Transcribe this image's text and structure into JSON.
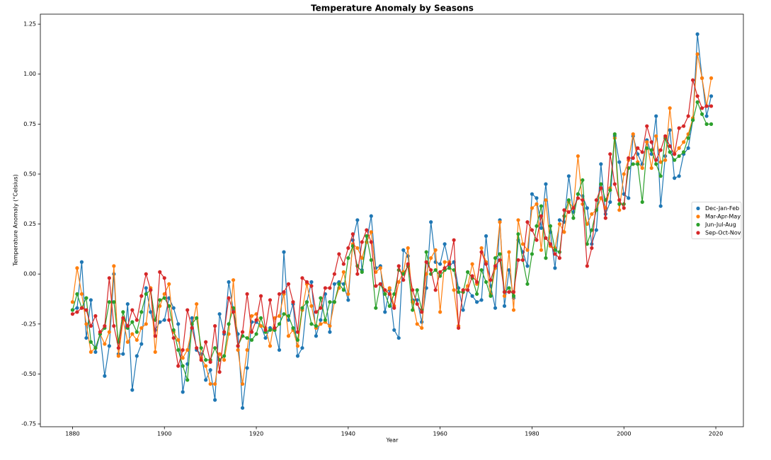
{
  "chart_data": {
    "type": "line",
    "title": "Temperature Anomaly by Seasons",
    "xlabel": "Year",
    "ylabel": "Temperature Anomaly (°Celsius)",
    "x": [
      1880,
      1881,
      1882,
      1883,
      1884,
      1885,
      1886,
      1887,
      1888,
      1889,
      1890,
      1891,
      1892,
      1893,
      1894,
      1895,
      1896,
      1897,
      1898,
      1899,
      1900,
      1901,
      1902,
      1903,
      1904,
      1905,
      1906,
      1907,
      1908,
      1909,
      1910,
      1911,
      1912,
      1913,
      1914,
      1915,
      1916,
      1917,
      1918,
      1919,
      1920,
      1921,
      1922,
      1923,
      1924,
      1925,
      1926,
      1927,
      1928,
      1929,
      1930,
      1931,
      1932,
      1933,
      1934,
      1935,
      1936,
      1937,
      1938,
      1939,
      1940,
      1941,
      1942,
      1943,
      1944,
      1945,
      1946,
      1947,
      1948,
      1949,
      1950,
      1951,
      1952,
      1953,
      1954,
      1955,
      1956,
      1957,
      1958,
      1959,
      1960,
      1961,
      1962,
      1963,
      1964,
      1965,
      1966,
      1967,
      1968,
      1969,
      1970,
      1971,
      1972,
      1973,
      1974,
      1975,
      1976,
      1977,
      1978,
      1979,
      1980,
      1981,
      1982,
      1983,
      1984,
      1985,
      1986,
      1987,
      1988,
      1989,
      1990,
      1991,
      1992,
      1993,
      1994,
      1995,
      1996,
      1997,
      1998,
      1999,
      2000,
      2001,
      2002,
      2003,
      2004,
      2005,
      2006,
      2007,
      2008,
      2009,
      2010,
      2011,
      2012,
      2013,
      2014,
      2015,
      2016,
      2017,
      2018,
      2019
    ],
    "series": [
      {
        "name": "Dec-Jan-Feb",
        "color": "#1f77b4",
        "values": [
          -0.18,
          -0.17,
          0.06,
          -0.32,
          -0.13,
          -0.39,
          -0.3,
          -0.51,
          -0.36,
          0.0,
          -0.4,
          -0.4,
          -0.15,
          -0.58,
          -0.41,
          -0.35,
          -0.07,
          -0.19,
          -0.28,
          -0.24,
          -0.23,
          -0.12,
          -0.17,
          -0.25,
          -0.59,
          -0.45,
          -0.22,
          -0.38,
          -0.4,
          -0.53,
          -0.48,
          -0.63,
          -0.2,
          -0.3,
          -0.04,
          -0.18,
          -0.3,
          -0.67,
          -0.47,
          -0.24,
          -0.24,
          -0.26,
          -0.32,
          -0.27,
          -0.28,
          -0.38,
          0.11,
          -0.23,
          -0.15,
          -0.41,
          -0.37,
          -0.14,
          -0.04,
          -0.31,
          -0.23,
          -0.1,
          -0.29,
          -0.05,
          -0.04,
          -0.05,
          -0.13,
          0.17,
          0.27,
          0.02,
          0.16,
          0.29,
          0.03,
          0.04,
          -0.19,
          -0.08,
          -0.28,
          -0.32,
          0.12,
          0.09,
          -0.13,
          -0.13,
          -0.24,
          -0.07,
          0.26,
          0.06,
          0.05,
          0.15,
          0.04,
          0.06,
          -0.07,
          -0.18,
          -0.08,
          -0.11,
          -0.14,
          -0.13,
          0.19,
          -0.06,
          -0.17,
          0.27,
          -0.16,
          0.02,
          -0.12,
          0.17,
          0.11,
          0.04,
          0.4,
          0.38,
          0.23,
          0.45,
          0.21,
          0.03,
          0.27,
          0.26,
          0.49,
          0.31,
          0.4,
          0.39,
          0.33,
          0.15,
          0.22,
          0.55,
          0.3,
          0.36,
          0.69,
          0.56,
          0.4,
          0.38,
          0.69,
          0.6,
          0.55,
          0.67,
          0.6,
          0.79,
          0.34,
          0.59,
          0.72,
          0.48,
          0.49,
          0.6,
          0.63,
          0.77,
          1.2,
          0.98,
          0.79,
          0.89
        ]
      },
      {
        "name": "Mar-Apr-May",
        "color": "#ff7f0e",
        "values": [
          -0.14,
          0.03,
          -0.1,
          -0.25,
          -0.39,
          -0.37,
          -0.3,
          -0.35,
          -0.29,
          0.04,
          -0.41,
          -0.23,
          -0.34,
          -0.3,
          -0.33,
          -0.27,
          -0.25,
          -0.07,
          -0.39,
          -0.16,
          -0.1,
          -0.05,
          -0.29,
          -0.33,
          -0.42,
          -0.38,
          -0.27,
          -0.15,
          -0.42,
          -0.46,
          -0.55,
          -0.55,
          -0.4,
          -0.43,
          -0.3,
          -0.03,
          -0.38,
          -0.55,
          -0.38,
          -0.21,
          -0.2,
          -0.26,
          -0.27,
          -0.36,
          -0.22,
          -0.21,
          -0.1,
          -0.31,
          -0.28,
          -0.36,
          -0.18,
          -0.05,
          -0.16,
          -0.27,
          -0.25,
          -0.24,
          -0.26,
          -0.14,
          -0.07,
          0.01,
          -0.1,
          0.15,
          0.13,
          0.08,
          0.16,
          0.21,
          0.01,
          0.03,
          -0.1,
          -0.07,
          -0.16,
          -0.04,
          0.01,
          0.13,
          -0.14,
          -0.25,
          -0.27,
          0.0,
          0.08,
          0.12,
          -0.19,
          0.06,
          0.06,
          -0.08,
          -0.26,
          -0.09,
          -0.06,
          0.05,
          -0.05,
          0.13,
          0.06,
          -0.1,
          0.03,
          0.26,
          -0.11,
          0.11,
          -0.18,
          0.27,
          0.15,
          0.12,
          0.33,
          0.35,
          0.12,
          0.37,
          0.14,
          0.13,
          0.25,
          0.21,
          0.36,
          0.33,
          0.59,
          0.35,
          0.25,
          0.3,
          0.32,
          0.38,
          0.33,
          0.43,
          0.68,
          0.32,
          0.5,
          0.57,
          0.7,
          0.56,
          0.53,
          0.66,
          0.53,
          0.69,
          0.56,
          0.57,
          0.83,
          0.6,
          0.63,
          0.66,
          0.7,
          0.78,
          1.1,
          0.98,
          0.84,
          0.98
        ]
      },
      {
        "name": "Jun-Jul-Aug",
        "color": "#2ca02c",
        "values": [
          -0.18,
          -0.1,
          -0.17,
          -0.12,
          -0.34,
          -0.37,
          -0.3,
          -0.27,
          -0.14,
          -0.14,
          -0.34,
          -0.19,
          -0.27,
          -0.24,
          -0.29,
          -0.19,
          -0.1,
          -0.08,
          -0.23,
          -0.13,
          -0.12,
          -0.16,
          -0.28,
          -0.38,
          -0.46,
          -0.53,
          -0.25,
          -0.22,
          -0.37,
          -0.43,
          -0.43,
          -0.37,
          -0.43,
          -0.41,
          -0.25,
          -0.17,
          -0.36,
          -0.31,
          -0.32,
          -0.33,
          -0.3,
          -0.22,
          -0.29,
          -0.28,
          -0.28,
          -0.25,
          -0.2,
          -0.21,
          -0.27,
          -0.33,
          -0.17,
          -0.14,
          -0.25,
          -0.26,
          -0.12,
          -0.23,
          -0.14,
          -0.14,
          -0.05,
          -0.08,
          0.08,
          0.14,
          0.04,
          0.01,
          0.19,
          0.07,
          -0.17,
          -0.05,
          -0.1,
          -0.16,
          -0.1,
          0.02,
          0.0,
          0.04,
          -0.18,
          -0.08,
          -0.18,
          0.11,
          0.0,
          0.02,
          -0.01,
          0.02,
          0.03,
          0.02,
          -0.09,
          -0.09,
          0.01,
          -0.02,
          -0.1,
          0.02,
          -0.04,
          -0.11,
          0.08,
          0.1,
          -0.09,
          -0.07,
          -0.11,
          0.2,
          0.07,
          -0.05,
          0.1,
          0.24,
          0.34,
          0.08,
          0.24,
          0.12,
          0.11,
          0.29,
          0.37,
          0.28,
          0.4,
          0.47,
          0.15,
          0.22,
          0.32,
          0.45,
          0.37,
          0.42,
          0.7,
          0.35,
          0.35,
          0.53,
          0.55,
          0.55,
          0.36,
          0.63,
          0.62,
          0.55,
          0.49,
          0.68,
          0.61,
          0.57,
          0.59,
          0.61,
          0.68,
          0.77,
          0.86,
          0.8,
          0.75,
          0.75
        ]
      },
      {
        "name": "Sep-Oct-Nov",
        "color": "#d62728",
        "values": [
          -0.2,
          -0.19,
          -0.17,
          -0.18,
          -0.26,
          -0.21,
          -0.29,
          -0.26,
          -0.02,
          -0.26,
          -0.37,
          -0.22,
          -0.26,
          -0.18,
          -0.23,
          -0.11,
          0.0,
          -0.08,
          -0.31,
          0.01,
          -0.02,
          -0.23,
          -0.32,
          -0.46,
          -0.38,
          -0.18,
          -0.27,
          -0.37,
          -0.43,
          -0.34,
          -0.44,
          -0.26,
          -0.49,
          -0.29,
          -0.12,
          -0.19,
          -0.36,
          -0.29,
          -0.1,
          -0.29,
          -0.23,
          -0.11,
          -0.28,
          -0.13,
          -0.27,
          -0.1,
          -0.09,
          -0.05,
          -0.14,
          -0.29,
          -0.02,
          -0.04,
          -0.06,
          -0.19,
          -0.17,
          -0.07,
          -0.07,
          0.0,
          0.1,
          0.05,
          0.13,
          0.2,
          0.0,
          0.16,
          0.22,
          0.16,
          -0.06,
          -0.05,
          -0.08,
          -0.1,
          -0.17,
          0.04,
          -0.03,
          0.05,
          -0.08,
          -0.15,
          -0.19,
          0.06,
          0.02,
          -0.08,
          0.01,
          0.03,
          0.05,
          0.17,
          -0.27,
          -0.08,
          -0.08,
          -0.01,
          -0.04,
          0.11,
          0.05,
          -0.03,
          0.04,
          0.07,
          -0.09,
          -0.09,
          -0.09,
          0.07,
          0.07,
          0.26,
          0.22,
          0.17,
          0.29,
          0.18,
          0.15,
          0.1,
          0.08,
          0.32,
          0.31,
          0.33,
          0.38,
          0.37,
          0.04,
          0.13,
          0.37,
          0.43,
          0.28,
          0.6,
          0.45,
          0.37,
          0.33,
          0.58,
          0.58,
          0.63,
          0.61,
          0.74,
          0.66,
          0.57,
          0.62,
          0.69,
          0.64,
          0.6,
          0.73,
          0.74,
          0.79,
          0.97,
          0.89,
          0.83,
          0.84,
          0.84
        ]
      }
    ],
    "xlim": [
      1873,
      2026
    ],
    "xticks": [
      1880,
      1900,
      1920,
      1940,
      1960,
      1980,
      2000,
      2020
    ],
    "ylim": [
      -0.764,
      1.3
    ],
    "yticks": [
      -0.75,
      {
        "value": -0.5,
        "label": "-0.50"
      },
      -0.25,
      {
        "value": 0,
        "label": "0.00"
      },
      0.25,
      {
        "value": 0.5,
        "label": "0.50"
      },
      0.75,
      {
        "value": 1,
        "label": "1.00"
      },
      1.25
    ],
    "grid": false,
    "legend": "center right"
  }
}
